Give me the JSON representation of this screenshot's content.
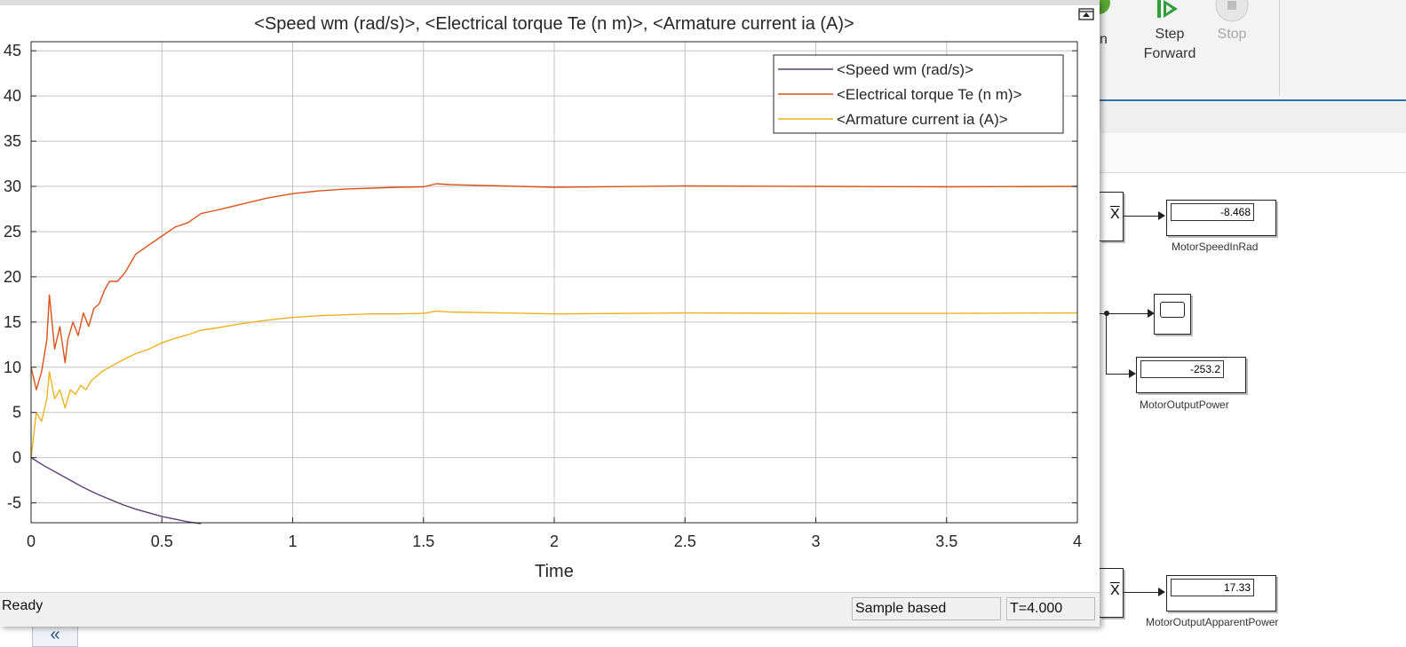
{
  "scope": {
    "title": "<Speed wm (rad/s)>, <Electrical torque Te (n m)>, <Armature current ia (A)>",
    "status": {
      "ready": "Ready",
      "mode": "Sample based",
      "time": "T=4.000"
    }
  },
  "toolbar": {
    "partial_label": "n",
    "step_forward_label_1": "Step",
    "step_forward_label_2": "Forward",
    "stop_label": "Stop"
  },
  "model": {
    "blocks": [
      {
        "label": "MotorSpeedInRad",
        "value": "-8.468"
      },
      {
        "label": "MotorOutputPower",
        "value": "-253.2"
      },
      {
        "label": "MotorOutputApparentPower",
        "value": "17.33"
      }
    ],
    "collapse_symbol": "«"
  },
  "chart_data": {
    "type": "line",
    "title": "<Speed wm (rad/s)>, <Electrical torque Te (n m)>, <Armature current ia (A)>",
    "xlabel": "Time",
    "ylabel": "",
    "xlim": [
      0,
      4
    ],
    "ylim": [
      -7.2,
      46
    ],
    "xticks": [
      0,
      0.5,
      1,
      1.5,
      2,
      2.5,
      3,
      3.5,
      4
    ],
    "xtick_labels": [
      "0",
      "0.5",
      "1",
      "1.5",
      "2",
      "2.5",
      "3",
      "3.5",
      "4"
    ],
    "yticks": [
      -5,
      0,
      5,
      10,
      15,
      20,
      25,
      30,
      35,
      40,
      45
    ],
    "ytick_labels": [
      "-5",
      "0",
      "5",
      "10",
      "15",
      "20",
      "25",
      "30",
      "35",
      "40",
      "45"
    ],
    "grid": true,
    "legend_position": "top-right",
    "series": [
      {
        "name": "<Speed wm (rad/s)>",
        "color": "#5e3c75",
        "x": [
          0,
          0.05,
          0.1,
          0.15,
          0.2,
          0.25,
          0.3,
          0.35,
          0.4,
          0.45,
          0.5,
          0.55,
          0.6,
          0.65
        ],
        "y": [
          0,
          -0.9,
          -1.7,
          -2.5,
          -3.3,
          -4.0,
          -4.6,
          -5.2,
          -5.7,
          -6.1,
          -6.5,
          -6.8,
          -7.1,
          -7.3
        ]
      },
      {
        "name": "<Electrical torque Te (n m)>",
        "color": "#d95319",
        "x": [
          0,
          0.02,
          0.04,
          0.06,
          0.07,
          0.09,
          0.11,
          0.13,
          0.14,
          0.16,
          0.18,
          0.2,
          0.22,
          0.24,
          0.26,
          0.28,
          0.3,
          0.33,
          0.36,
          0.4,
          0.45,
          0.5,
          0.55,
          0.6,
          0.65,
          0.7,
          0.8,
          0.9,
          1.0,
          1.1,
          1.2,
          1.3,
          1.4,
          1.5,
          1.55,
          1.6,
          1.8,
          2.0,
          2.5,
          3.0,
          3.5,
          4.0
        ],
        "y": [
          10,
          7.5,
          9.5,
          13,
          18,
          12,
          14.5,
          10.5,
          13,
          15,
          13.5,
          16,
          14.5,
          16.5,
          17,
          18.5,
          19.5,
          19.5,
          20.5,
          22.5,
          23.5,
          24.5,
          25.5,
          26,
          27,
          27.3,
          28,
          28.7,
          29.2,
          29.5,
          29.7,
          29.8,
          29.9,
          29.95,
          30.3,
          30.2,
          30.05,
          29.9,
          30.05,
          30.0,
          29.95,
          30.0
        ]
      },
      {
        "name": "<Armature current ia (A)>",
        "color": "#edb120",
        "x": [
          0,
          0.02,
          0.04,
          0.06,
          0.07,
          0.09,
          0.11,
          0.13,
          0.15,
          0.17,
          0.19,
          0.21,
          0.23,
          0.25,
          0.27,
          0.3,
          0.35,
          0.4,
          0.45,
          0.5,
          0.55,
          0.6,
          0.65,
          0.7,
          0.8,
          0.9,
          1.0,
          1.1,
          1.2,
          1.3,
          1.4,
          1.5,
          1.55,
          1.6,
          1.8,
          2.0,
          2.5,
          3.0,
          3.5,
          4.0
        ],
        "y": [
          0,
          5.0,
          4.0,
          6.5,
          9.5,
          6.5,
          7.5,
          5.5,
          7.5,
          7.0,
          8.0,
          7.5,
          8.5,
          9.0,
          9.5,
          10.0,
          10.8,
          11.5,
          12.0,
          12.7,
          13.2,
          13.6,
          14.1,
          14.3,
          14.8,
          15.2,
          15.5,
          15.7,
          15.8,
          15.9,
          15.9,
          15.95,
          16.2,
          16.1,
          16.0,
          15.9,
          16.0,
          15.95,
          15.95,
          16.0
        ]
      }
    ]
  }
}
